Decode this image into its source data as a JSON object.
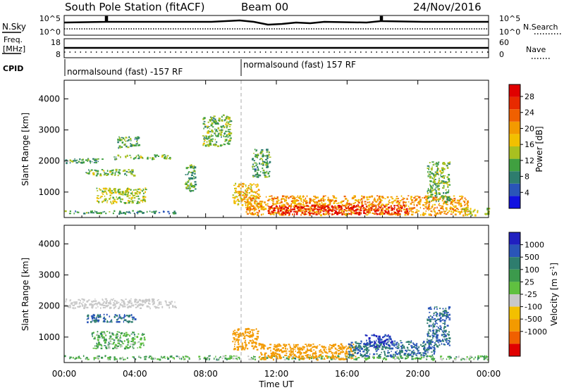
{
  "header": {
    "title": "South Pole Station (fitACF)",
    "beam": "Beam 00",
    "date": "24/Nov/2016"
  },
  "aux": {
    "nsky_label": "N.Sky",
    "nsearch_label": "N.Search",
    "nsky_ticks": [
      "10^5",
      "10^0"
    ],
    "nsearch_ticks": [
      "10^5",
      "10^0"
    ],
    "freq_label_1": "Freq.",
    "freq_label_2": "[MHz]",
    "freq_ticks": [
      "18",
      "8"
    ],
    "nave_label": "Nave",
    "nave_ticks": [
      "60",
      "0"
    ],
    "cpid_label": "CPID",
    "cpid_1": "normalsound (fast) -157 RF",
    "cpid_2": "normalsound (fast) 157 RF"
  },
  "power_panel": {
    "ylabel": "Slant Range [km]",
    "yticks": [
      "1000",
      "2000",
      "3000",
      "4000"
    ],
    "colorbar_label": "Power [dB]",
    "colorbar_ticks": [
      "4",
      "8",
      "12",
      "16",
      "20",
      "24",
      "28"
    ],
    "colors": [
      "#1010e0",
      "#2a55b8",
      "#2e7d6e",
      "#40a040",
      "#a8c020",
      "#f2c000",
      "#f39a00",
      "#f06000",
      "#e82a00",
      "#e00000"
    ]
  },
  "velocity_panel": {
    "ylabel": "Slant Range [km]",
    "yticks": [
      "1000",
      "2000",
      "3000",
      "4000"
    ],
    "colorbar_label": "Velocity [m s",
    "colorbar_unit_sup": "-1",
    "colorbar_unit_end": "]",
    "colorbar_ticks": [
      "1000",
      "500",
      "100",
      "25",
      "-25",
      "-100",
      "-500",
      "-1000"
    ],
    "colors": [
      "#2020c0",
      "#2a55b8",
      "#2e7d6e",
      "#3c9a4c",
      "#60c040",
      "#c8c8c8",
      "#f3c000",
      "#f39a00",
      "#f06000",
      "#e00000"
    ]
  },
  "xaxis": {
    "label": "Time UT",
    "ticks": [
      "00:00",
      "04:00",
      "08:00",
      "12:00",
      "16:00",
      "20:00",
      "00:00"
    ]
  },
  "chart_data": [
    {
      "type": "heatmap",
      "title": "South Pole Station (fitACF)",
      "xlabel": "Time UT",
      "ylabel": "Slant Range [km]",
      "xlim": [
        "00:00",
        "24:00"
      ],
      "ylim": [
        180,
        4600
      ],
      "colorbar": {
        "label": "Power [dB]",
        "range": [
          0,
          31
        ]
      },
      "regions": [
        {
          "t": [
            0.0,
            6.3
          ],
          "r": [
            330,
            420
          ],
          "value": 9
        },
        {
          "t": [
            0.0,
            2.2
          ],
          "r": [
            1950,
            2100
          ],
          "value": 10
        },
        {
          "t": [
            2.8,
            6.0
          ],
          "r": [
            2080,
            2220
          ],
          "value": 12
        },
        {
          "t": [
            1.2,
            4.0
          ],
          "r": [
            1550,
            1750
          ],
          "value": 12
        },
        {
          "t": [
            1.8,
            4.6
          ],
          "r": [
            650,
            1150
          ],
          "value": 14
        },
        {
          "t": [
            3.0,
            4.2
          ],
          "r": [
            2450,
            2800
          ],
          "value": 10
        },
        {
          "t": [
            6.8,
            7.4
          ],
          "r": [
            1050,
            1900
          ],
          "value": 10
        },
        {
          "t": [
            7.8,
            9.4
          ],
          "r": [
            2500,
            3500
          ],
          "value": 12
        },
        {
          "t": [
            9.5,
            11.0
          ],
          "r": [
            600,
            1300
          ],
          "value": 18
        },
        {
          "t": [
            10.2,
            22.8
          ],
          "r": [
            280,
            900
          ],
          "value": 20
        },
        {
          "t": [
            11.5,
            19.5
          ],
          "r": [
            300,
            600
          ],
          "value": 28
        },
        {
          "t": [
            10.6,
            11.6
          ],
          "r": [
            1500,
            2400
          ],
          "value": 10
        },
        {
          "t": [
            20.5,
            21.8
          ],
          "r": [
            700,
            2000
          ],
          "value": 12
        },
        {
          "t": [
            22.5,
            24.0
          ],
          "r": [
            280,
            500
          ],
          "value": 14
        }
      ]
    },
    {
      "type": "heatmap",
      "title": "South Pole Station (fitACF)",
      "xlabel": "Time UT",
      "ylabel": "Slant Range [km]",
      "xlim": [
        "00:00",
        "24:00"
      ],
      "ylim": [
        180,
        4600
      ],
      "colorbar": {
        "label": "Velocity [m s-1]",
        "ticks": [
          1000,
          500,
          100,
          25,
          -25,
          -100,
          -500,
          -1000
        ]
      },
      "regions": [
        {
          "t": [
            0.0,
            24.0
          ],
          "r": [
            300,
            420
          ],
          "value": 60
        },
        {
          "t": [
            0.0,
            6.3
          ],
          "r": [
            1950,
            2250
          ],
          "value": 0
        },
        {
          "t": [
            1.5,
            4.5
          ],
          "r": [
            650,
            1200
          ],
          "value": 60
        },
        {
          "t": [
            1.2,
            4.0
          ],
          "r": [
            1500,
            1750
          ],
          "value": 300
        },
        {
          "t": [
            9.5,
            11.0
          ],
          "r": [
            600,
            1300
          ],
          "value": -200
        },
        {
          "t": [
            11.0,
            16.5
          ],
          "r": [
            300,
            800
          ],
          "value": -150
        },
        {
          "t": [
            16.0,
            21.0
          ],
          "r": [
            400,
            900
          ],
          "value": 300
        },
        {
          "t": [
            17.0,
            18.5
          ],
          "r": [
            700,
            1100
          ],
          "value": 800
        },
        {
          "t": [
            20.5,
            21.8
          ],
          "r": [
            700,
            2000
          ],
          "value": 300
        }
      ]
    }
  ]
}
